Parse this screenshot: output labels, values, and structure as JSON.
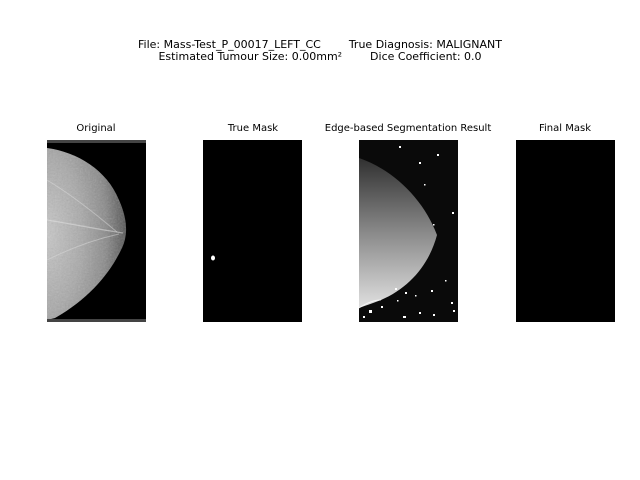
{
  "figure": {
    "suptitle_line1": "File: Mass-Test_P_00017_LEFT_CC        True Diagnosis: MALIGNANT",
    "suptitle_line2": "Estimated Tumour Size: 0.00mm²        Dice Coefficient: 0.0",
    "panels": [
      {
        "title": "Original",
        "image": "mammogram-original"
      },
      {
        "title": "True Mask",
        "image": "ground-truth-mask"
      },
      {
        "title": "Edge-based Segmentation Result",
        "image": "edge-segmentation"
      },
      {
        "title": "Final Mask",
        "image": "final-mask"
      }
    ]
  },
  "colors": {
    "background": "#ffffff",
    "image_background": "#000000",
    "mask_foreground": "#ffffff"
  }
}
